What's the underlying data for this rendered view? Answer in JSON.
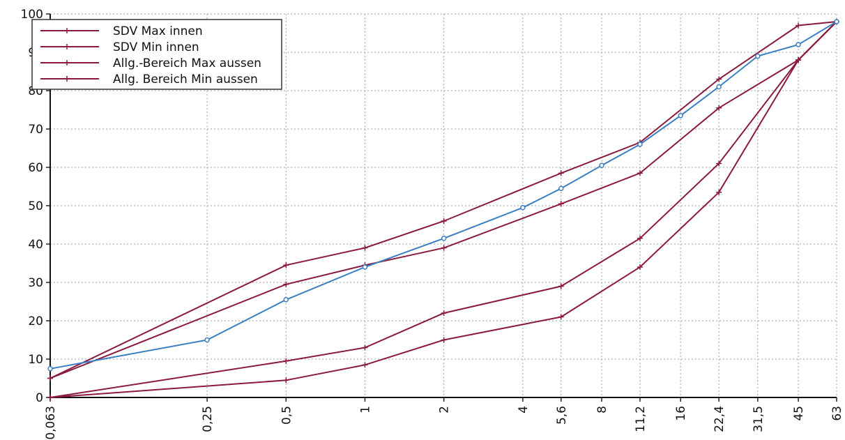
{
  "chart_data": {
    "type": "line",
    "title": "",
    "xlabel": "",
    "ylabel": "",
    "x_scale": "log",
    "x_ticks": [
      "0,063",
      "0,25",
      "0,5",
      "1",
      "2",
      "4",
      "5,6",
      "8",
      "11,2",
      "16",
      "22,4",
      "31,5",
      "45",
      "63"
    ],
    "x_tick_values": [
      0.063,
      0.25,
      0.5,
      1,
      2,
      4,
      5.6,
      8,
      11.2,
      16,
      22.4,
      31.5,
      45,
      63
    ],
    "ylim": [
      0,
      100
    ],
    "y_ticks": [
      0,
      10,
      20,
      30,
      40,
      50,
      60,
      70,
      80,
      90,
      100
    ],
    "grid": true,
    "legend_position": "top-left",
    "series": [
      {
        "name": "SDV Max innen",
        "color": "#8b1a3a",
        "marker": "plus",
        "x": [
          0.063,
          0.5,
          1,
          2,
          5.6,
          11.2,
          22.4,
          45,
          63
        ],
        "y": [
          5,
          34.5,
          39,
          46,
          58.5,
          66.5,
          83,
          97,
          98
        ]
      },
      {
        "name": "SDV Min innen",
        "color": "#8b1a3a",
        "marker": "plus",
        "x": [
          0.063,
          0.5,
          1,
          2,
          5.6,
          11.2,
          22.4,
          45,
          63
        ],
        "y": [
          5,
          29.5,
          34.5,
          39,
          50.5,
          58.5,
          75.5,
          88,
          98
        ]
      },
      {
        "name": "Allg.-Bereich Max aussen",
        "color": "#8b1a3a",
        "marker": "plus",
        "x": [
          0.063,
          0.5,
          1,
          2,
          5.6,
          11.2,
          22.4,
          45,
          63
        ],
        "y": [
          0,
          9.5,
          13,
          22,
          29,
          41.5,
          61,
          88,
          98
        ]
      },
      {
        "name": "Allg. Bereich Min  aussen",
        "color": "#8b1a3a",
        "marker": "plus",
        "x": [
          0.063,
          0.5,
          1,
          2,
          5.6,
          11.2,
          22.4,
          45,
          63
        ],
        "y": [
          0,
          4.5,
          8.5,
          15,
          21,
          34,
          53.5,
          88,
          98
        ]
      },
      {
        "color": "#3a7fc4",
        "marker": "circle",
        "x": [
          0.063,
          0.25,
          0.5,
          1,
          2,
          4,
          5.6,
          8,
          11.2,
          16,
          22.4,
          31.5,
          45,
          63
        ],
        "y": [
          7.5,
          15,
          25.5,
          34,
          41.5,
          49.5,
          54.5,
          60.5,
          66,
          73.5,
          81,
          89,
          92,
          98
        ]
      }
    ]
  }
}
